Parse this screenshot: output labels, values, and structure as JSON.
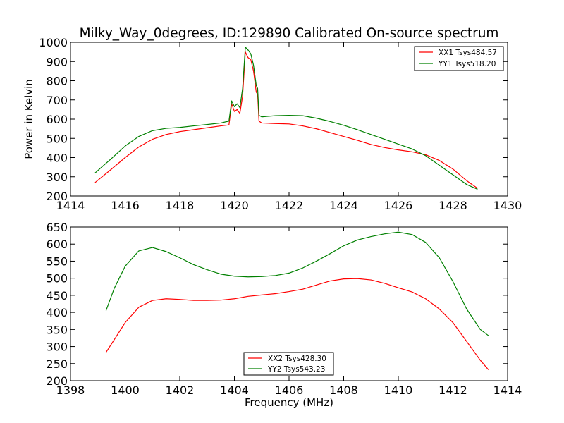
{
  "title": "Milky_Way_0degrees, ID:129890 Calibrated On-source spectrum",
  "chart_data": [
    {
      "type": "line",
      "xlabel": "",
      "ylabel": "Power in Kelvin",
      "xlim": [
        1414,
        1430
      ],
      "ylim": [
        200,
        1000
      ],
      "xticks": [
        1414,
        1416,
        1418,
        1420,
        1422,
        1424,
        1426,
        1428,
        1430
      ],
      "yticks": [
        200,
        300,
        400,
        500,
        600,
        700,
        800,
        900,
        1000
      ],
      "legend": "top-right",
      "series": [
        {
          "name": "XX1 Tsys484.57",
          "color": "#ff0000",
          "x": [
            1414.9,
            1415.5,
            1416.0,
            1416.5,
            1417.0,
            1417.5,
            1418.0,
            1418.5,
            1419.0,
            1419.5,
            1419.8,
            1419.9,
            1420.0,
            1420.1,
            1420.2,
            1420.3,
            1420.4,
            1420.5,
            1420.6,
            1420.7,
            1420.8,
            1420.85,
            1420.9,
            1421.0,
            1421.5,
            1422.0,
            1422.5,
            1423.0,
            1423.5,
            1424.0,
            1424.5,
            1425.0,
            1425.5,
            1426.0,
            1426.5,
            1427.0,
            1427.5,
            1428.0,
            1428.5,
            1428.9
          ],
          "y": [
            270,
            340,
            400,
            455,
            495,
            520,
            535,
            545,
            555,
            565,
            570,
            680,
            640,
            650,
            630,
            720,
            950,
            920,
            910,
            850,
            740,
            730,
            590,
            580,
            577,
            575,
            565,
            550,
            530,
            510,
            490,
            468,
            452,
            440,
            430,
            415,
            385,
            340,
            280,
            240
          ]
        },
        {
          "name": "YY1 Tsys518.20",
          "color": "#008000",
          "x": [
            1414.9,
            1415.5,
            1416.0,
            1416.5,
            1417.0,
            1417.5,
            1418.0,
            1418.5,
            1419.0,
            1419.5,
            1419.8,
            1419.9,
            1420.0,
            1420.1,
            1420.2,
            1420.3,
            1420.4,
            1420.5,
            1420.6,
            1420.7,
            1420.8,
            1420.85,
            1420.9,
            1421.0,
            1421.5,
            1422.0,
            1422.5,
            1423.0,
            1423.5,
            1424.0,
            1424.5,
            1425.0,
            1425.5,
            1426.0,
            1426.5,
            1427.0,
            1427.5,
            1428.0,
            1428.5,
            1428.9
          ],
          "y": [
            320,
            395,
            460,
            510,
            540,
            552,
            557,
            565,
            572,
            580,
            590,
            695,
            665,
            680,
            660,
            760,
            975,
            960,
            940,
            880,
            775,
            760,
            620,
            612,
            618,
            620,
            618,
            605,
            588,
            568,
            545,
            520,
            495,
            470,
            445,
            410,
            360,
            310,
            260,
            235
          ]
        }
      ]
    },
    {
      "type": "line",
      "xlabel": "Frequency (MHz)",
      "ylabel": "",
      "xlim": [
        1398,
        1414
      ],
      "ylim": [
        200,
        650
      ],
      "xticks": [
        1398,
        1400,
        1402,
        1404,
        1406,
        1408,
        1410,
        1412,
        1414
      ],
      "yticks": [
        200,
        250,
        300,
        350,
        400,
        450,
        500,
        550,
        600,
        650
      ],
      "legend": "bottom-center",
      "series": [
        {
          "name": "XX2 Tsys428.30",
          "color": "#ff0000",
          "x": [
            1399.3,
            1399.6,
            1400.0,
            1400.5,
            1401.0,
            1401.5,
            1402.0,
            1402.5,
            1403.0,
            1403.5,
            1404.0,
            1404.5,
            1405.0,
            1405.5,
            1406.0,
            1406.5,
            1407.0,
            1407.5,
            1408.0,
            1408.5,
            1409.0,
            1409.5,
            1410.0,
            1410.5,
            1411.0,
            1411.5,
            1412.0,
            1412.5,
            1413.0,
            1413.3
          ],
          "y": [
            283,
            320,
            370,
            415,
            435,
            440,
            438,
            435,
            435,
            436,
            440,
            447,
            451,
            455,
            461,
            468,
            480,
            492,
            498,
            499,
            495,
            485,
            472,
            460,
            440,
            410,
            370,
            315,
            260,
            232
          ]
        },
        {
          "name": "YY2 Tsys543.23",
          "color": "#008000",
          "x": [
            1399.3,
            1399.6,
            1400.0,
            1400.5,
            1401.0,
            1401.5,
            1402.0,
            1402.5,
            1403.0,
            1403.5,
            1404.0,
            1404.5,
            1405.0,
            1405.5,
            1406.0,
            1406.5,
            1407.0,
            1407.5,
            1408.0,
            1408.5,
            1409.0,
            1409.5,
            1410.0,
            1410.5,
            1411.0,
            1411.5,
            1412.0,
            1412.5,
            1413.0,
            1413.3
          ],
          "y": [
            405,
            470,
            535,
            580,
            590,
            578,
            560,
            540,
            525,
            512,
            506,
            504,
            505,
            508,
            515,
            530,
            550,
            572,
            595,
            612,
            622,
            630,
            635,
            628,
            605,
            560,
            490,
            410,
            350,
            332
          ]
        }
      ]
    }
  ]
}
